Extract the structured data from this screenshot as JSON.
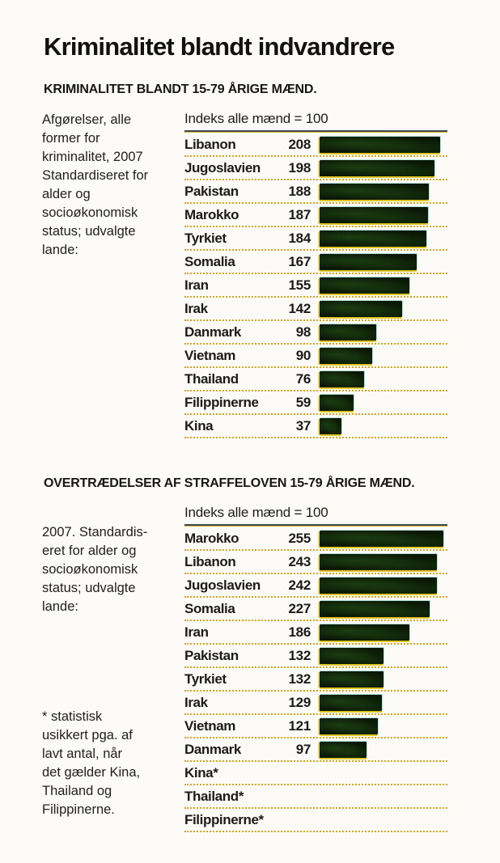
{
  "page_title": "Kriminalitet blandt indvandrere",
  "colors": {
    "background": "#fcfbf8",
    "text": "#1d1b19",
    "bar_fill": "#0b1806",
    "bar_fringe_yellow": "#d8be0a",
    "dotted_separator": "#d8a41c",
    "axis_rule_dark": "#3e4a52",
    "axis_rule_yellow": "#d9b62e"
  },
  "chart_data": [
    {
      "type": "bar",
      "orientation": "horizontal",
      "section_heading": "KRIMINALITET BLANDT 15-79 ÅRIGE MÆND.",
      "sidebar_note": "Afgørelser, alle\nformer for\nkriminalitet, 2007\nStandardiseret for\nalder og\nsocioøkonomisk\nstatus; udvalgte\nlande:",
      "xlabel": "Indeks alle mænd = 100",
      "categories": [
        "Libanon",
        "Jugoslavien",
        "Pakistan",
        "Marokko",
        "Tyrkiet",
        "Somalia",
        "Iran",
        "Irak",
        "Danmark",
        "Vietnam",
        "Thailand",
        "Filippinerne",
        "Kina"
      ],
      "values": [
        208,
        198,
        188,
        187,
        184,
        167,
        155,
        142,
        98,
        90,
        76,
        59,
        37
      ],
      "xlim": [
        0,
        220
      ],
      "grid": false,
      "legend": false
    },
    {
      "type": "bar",
      "orientation": "horizontal",
      "section_heading": "OVERTRÆDELSER AF STRAFFELOVEN 15-79 ÅRIGE MÆND.",
      "sidebar_note": "2007. Standardis-\neret for alder og\nsocioøkonomisk\nstatus; udvalgte\nlande:",
      "footnote": "* statistisk\nusikkert pga. af\nlavt antal, når\ndet gælder Kina,\nThailand og\nFilippinerne.",
      "xlabel": "Indeks alle mænd = 100",
      "categories": [
        "Marokko",
        "Libanon",
        "Jugoslavien",
        "Somalia",
        "Iran",
        "Pakistan",
        "Tyrkiet",
        "Irak",
        "Vietnam",
        "Danmark",
        "Kina*",
        "Thailand*",
        "Filippinerne*"
      ],
      "values": [
        255,
        243,
        242,
        227,
        186,
        132,
        132,
        129,
        121,
        97,
        null,
        null,
        null
      ],
      "xlim": [
        0,
        264
      ],
      "grid": false,
      "legend": false
    }
  ]
}
